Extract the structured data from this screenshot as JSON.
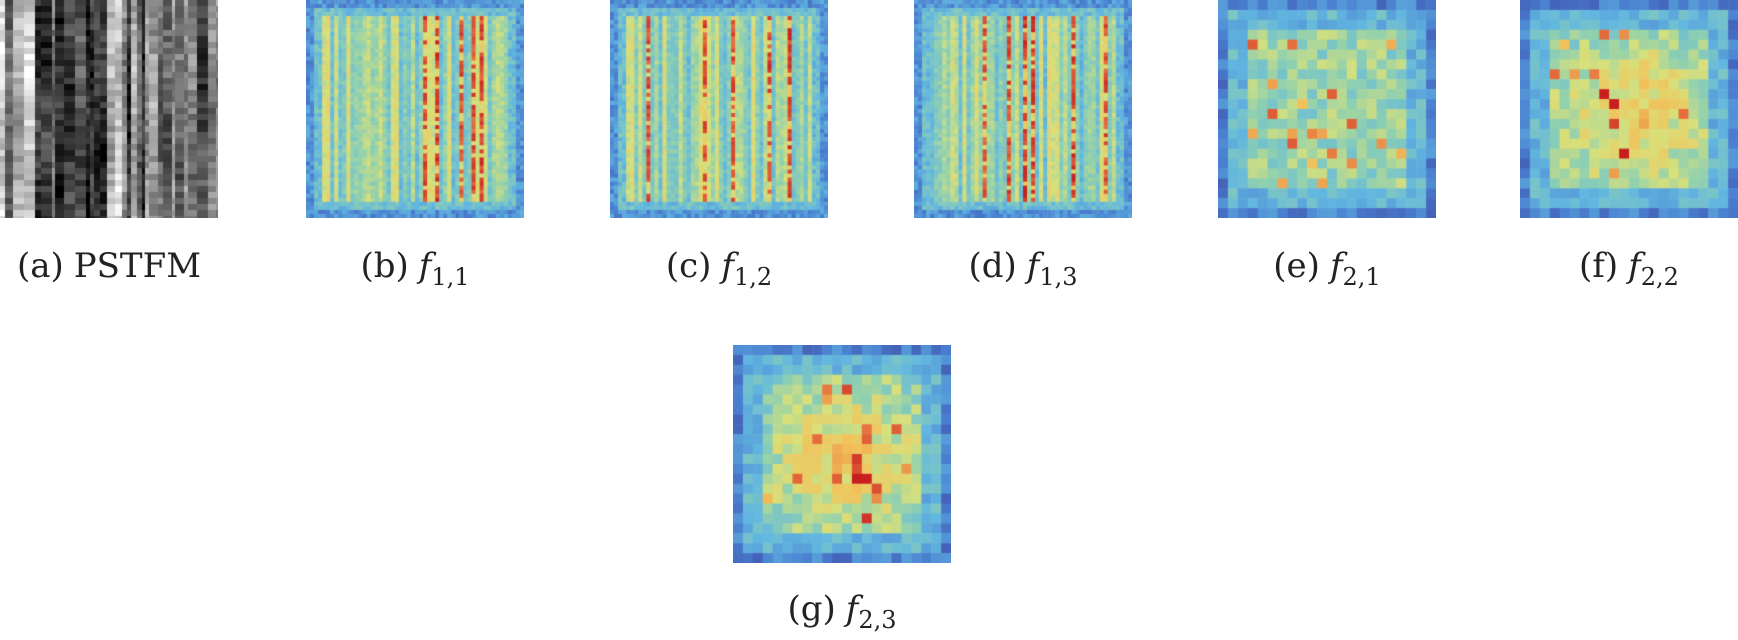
{
  "panels": [
    {
      "id": "a",
      "label": "(a)",
      "text": "PSTFM",
      "kind": "grayscale"
    },
    {
      "id": "b",
      "label": "(b)",
      "fn": "f",
      "sub": "1,1",
      "kind": "fine"
    },
    {
      "id": "c",
      "label": "(c)",
      "fn": "f",
      "sub": "1,2",
      "kind": "fine"
    },
    {
      "id": "d",
      "label": "(d)",
      "fn": "f",
      "sub": "1,3",
      "kind": "fine"
    },
    {
      "id": "e",
      "label": "(e)",
      "fn": "f",
      "sub": "2,1",
      "kind": "coarse"
    },
    {
      "id": "f",
      "label": "(f)",
      "fn": "f",
      "sub": "2,2",
      "kind": "coarse"
    },
    {
      "id": "g",
      "label": "(g)",
      "fn": "f",
      "sub": "2,3",
      "kind": "coarse"
    }
  ],
  "colors": {
    "colormap": [
      "#3b3d9a",
      "#4a7fd0",
      "#62b7e0",
      "#8fd0b0",
      "#d8e07a",
      "#f2c15a",
      "#e7733e",
      "#c81e1e"
    ],
    "background": "#ffffff"
  }
}
